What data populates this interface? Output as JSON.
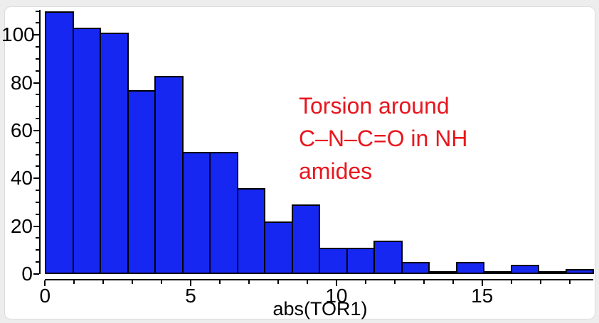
{
  "chart_data": {
    "type": "bar",
    "subtype": "histogram",
    "title": "",
    "xlabel": "abs(TOR1)",
    "ylabel": "",
    "bin_start": 0,
    "bin_width": 0.94,
    "counts": [
      110,
      103,
      101,
      77,
      83,
      51,
      51,
      36,
      22,
      29,
      11,
      11,
      14,
      5,
      1,
      5,
      1,
      4,
      1,
      2
    ],
    "xlim": [
      0,
      18.85
    ],
    "ylim": [
      0,
      110
    ],
    "x_major_ticks": [
      0,
      5,
      10,
      15
    ],
    "x_minor_step": 1,
    "x_minor_max": 18,
    "y_major_ticks": [
      0,
      20,
      40,
      60,
      80,
      100
    ],
    "y_minor_step": 5,
    "y_minor_max": 110,
    "grid": "off",
    "legend": "none",
    "bar_color": "#1527f0",
    "bar_border_color": "#000000",
    "axis_color": "#000000",
    "annotation": {
      "lines": [
        "Torsion around",
        "C–N–C=O in NH",
        "amides"
      ],
      "color": "#e8161e"
    }
  }
}
